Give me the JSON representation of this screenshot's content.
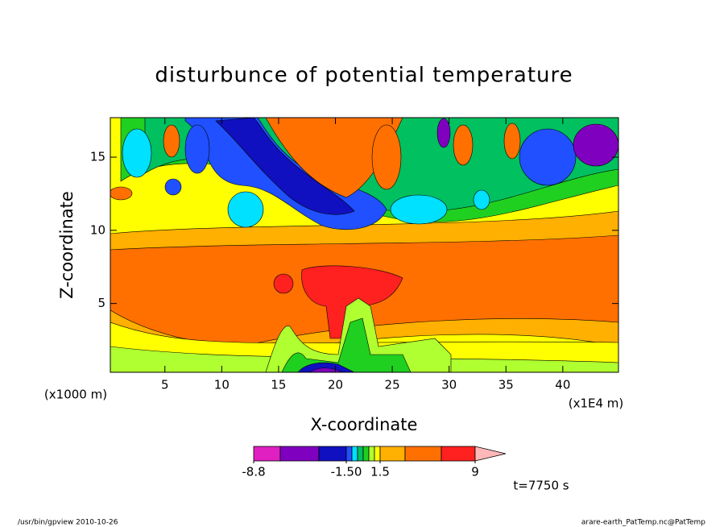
{
  "chart_data": {
    "type": "contour",
    "title": "disturbunce of potential temperature",
    "xlabel": "X-coordinate",
    "ylabel": "Z-coordinate",
    "x_unit_label": "(x1000 m)",
    "x_scale_label": "(x1E4 m)",
    "xlim": [
      0.2,
      44.9
    ],
    "ylim": [
      0.3,
      17.7
    ],
    "xticks": [
      5,
      10,
      15,
      20,
      25,
      30,
      35,
      40
    ],
    "yticks": [
      5,
      10,
      15
    ],
    "colorbar": {
      "levels": [
        -8.8,
        -6,
        -3.5,
        -1.5,
        -1,
        -0.5,
        0,
        0.5,
        1,
        1.5,
        3.5,
        6,
        9
      ],
      "colors": [
        "#e020c0",
        "#8000c0",
        "#1010c0",
        "#2050ff",
        "#00e0ff",
        "#00c060",
        "#20d020",
        "#b0ff30",
        "#ffff00",
        "#ffb000",
        "#ff7000",
        "#ff2020",
        "#ff7878"
      ],
      "extend_color": "#ffb8b8",
      "ticks": [
        -8.8,
        {
          "value": -1.5,
          "label": "-1.50"
        },
        1.5,
        9
      ]
    },
    "time_label": "t=7750 s",
    "footer_left": "/usr/bin/gpview  2010-10-26",
    "footer_right": "arare-earth_PatTemp.nc@PatTemp"
  }
}
